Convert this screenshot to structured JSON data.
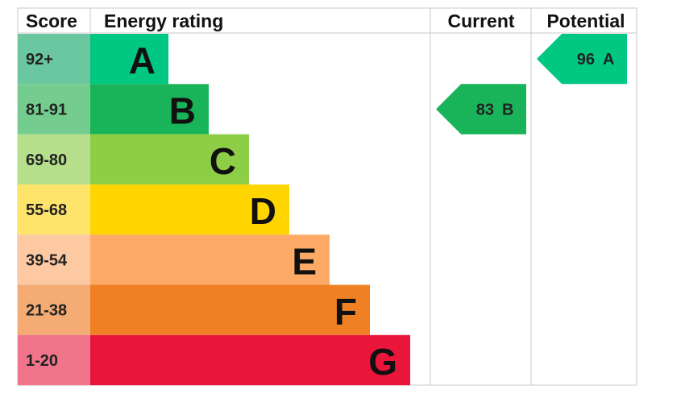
{
  "header": {
    "score": "Score",
    "rating": "Energy rating",
    "current": "Current",
    "potential": "Potential"
  },
  "rows": [
    {
      "score": "92+",
      "letter": "A",
      "color": "#00c781",
      "score_color": "#6ac7a0"
    },
    {
      "score": "81-91",
      "letter": "B",
      "color": "#19b459",
      "score_color": "#74cd8f"
    },
    {
      "score": "69-80",
      "letter": "C",
      "color": "#8dce46",
      "score_color": "#b6df8c"
    },
    {
      "score": "55-68",
      "letter": "D",
      "color": "#ffd500",
      "score_color": "#ffe46c"
    },
    {
      "score": "39-54",
      "letter": "E",
      "color": "#fcaa65",
      "score_color": "#fdc9a2"
    },
    {
      "score": "21-38",
      "letter": "F",
      "color": "#ef8023",
      "score_color": "#f4ab74"
    },
    {
      "score": "1-20",
      "letter": "G",
      "color": "#e9153b",
      "score_color": "#f0748a"
    }
  ],
  "current": {
    "value": 83,
    "letter": "B"
  },
  "potential": {
    "value": 96,
    "letter": "A"
  }
}
